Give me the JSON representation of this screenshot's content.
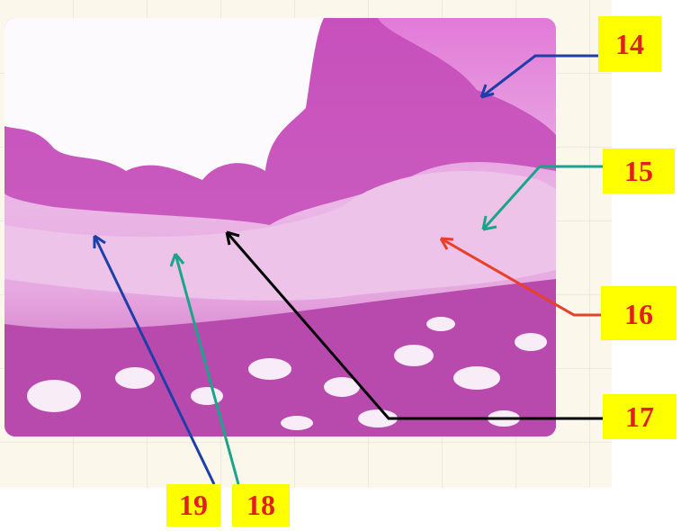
{
  "labels": [
    "14",
    "15",
    "16",
    "17",
    "18",
    "19"
  ]
}
